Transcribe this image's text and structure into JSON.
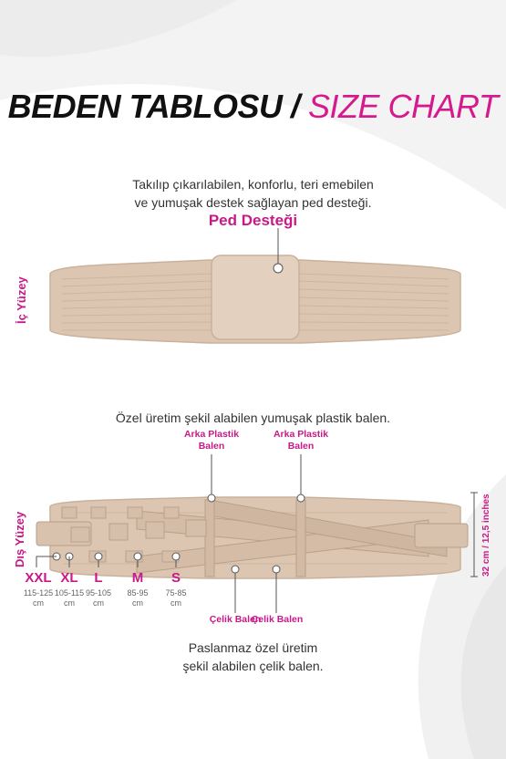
{
  "title": {
    "black": "BEDEN TABLOSU /",
    "pink": "SIZE CHART"
  },
  "inner": {
    "side_label": "İç Yüzey",
    "description_line1": "Takılıp çıkarılabilen, konforlu, teri emebilen",
    "description_line2": "ve yumuşak destek sağlayan ped desteği.",
    "callout": "Ped Desteği"
  },
  "outer": {
    "side_label": "Dış Yüzey",
    "description": "Özel üretim şekil alabilen yumuşak plastik balen.",
    "back_label_1": "Arka Plastik Balen",
    "back_label_2": "Arka Plastik Balen",
    "height_label": "32 cm / 12,5 inches",
    "steel_label_1": "Çelik Balen",
    "steel_label_2": "Çelik Balen",
    "bottom_line1": "Paslanmaz özel üretim",
    "bottom_line2": "şekil alabilen çelik balen."
  },
  "sizes": [
    {
      "code": "XXL",
      "range": "115-125",
      "unit": "cm"
    },
    {
      "code": "XL",
      "range": "105-115",
      "unit": "cm"
    },
    {
      "code": "L",
      "range": "95-105",
      "unit": "cm"
    },
    {
      "code": "M",
      "range": "85-95",
      "unit": "cm"
    },
    {
      "code": "S",
      "range": "75-85",
      "unit": "cm"
    }
  ],
  "colors": {
    "accent": "#c81a87",
    "belt": "#dcc6b2",
    "belt_dark": "#c9b19c"
  }
}
